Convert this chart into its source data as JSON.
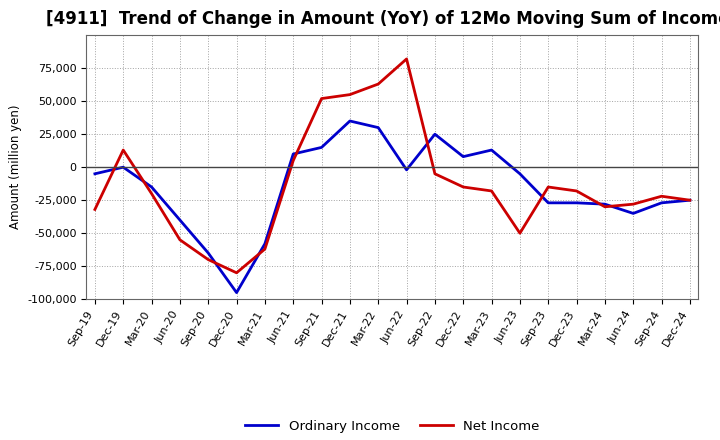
{
  "title": "[4911]  Trend of Change in Amount (YoY) of 12Mo Moving Sum of Incomes",
  "ylabel": "Amount (million yen)",
  "x_labels": [
    "Sep-19",
    "Dec-19",
    "Mar-20",
    "Jun-20",
    "Sep-20",
    "Dec-20",
    "Mar-21",
    "Jun-21",
    "Sep-21",
    "Dec-21",
    "Mar-22",
    "Jun-22",
    "Sep-22",
    "Dec-22",
    "Mar-23",
    "Jun-23",
    "Sep-23",
    "Dec-23",
    "Mar-24",
    "Jun-24",
    "Sep-24",
    "Dec-24"
  ],
  "ordinary_income": [
    -5000,
    0,
    -15000,
    -40000,
    -65000,
    -95000,
    -58000,
    10000,
    15000,
    35000,
    30000,
    -2000,
    25000,
    8000,
    13000,
    -5000,
    -27000,
    -27000,
    -28000,
    -35000,
    -27000,
    -25000
  ],
  "net_income": [
    -32000,
    13000,
    -20000,
    -55000,
    -70000,
    -80000,
    -62000,
    5000,
    52000,
    55000,
    63000,
    82000,
    -5000,
    -15000,
    -18000,
    -50000,
    -15000,
    -18000,
    -30000,
    -28000,
    -22000,
    -25000
  ],
  "ordinary_income_color": "#0000CC",
  "net_income_color": "#CC0000",
  "ylim": [
    -100000,
    100000
  ],
  "yticks": [
    -100000,
    -75000,
    -50000,
    -25000,
    0,
    25000,
    50000,
    75000
  ],
  "background_color": "#FFFFFF",
  "grid_color": "#999999",
  "legend_labels": [
    "Ordinary Income",
    "Net Income"
  ],
  "title_fontsize": 12,
  "label_fontsize": 8.5,
  "tick_fontsize": 8,
  "linewidth": 2.0
}
